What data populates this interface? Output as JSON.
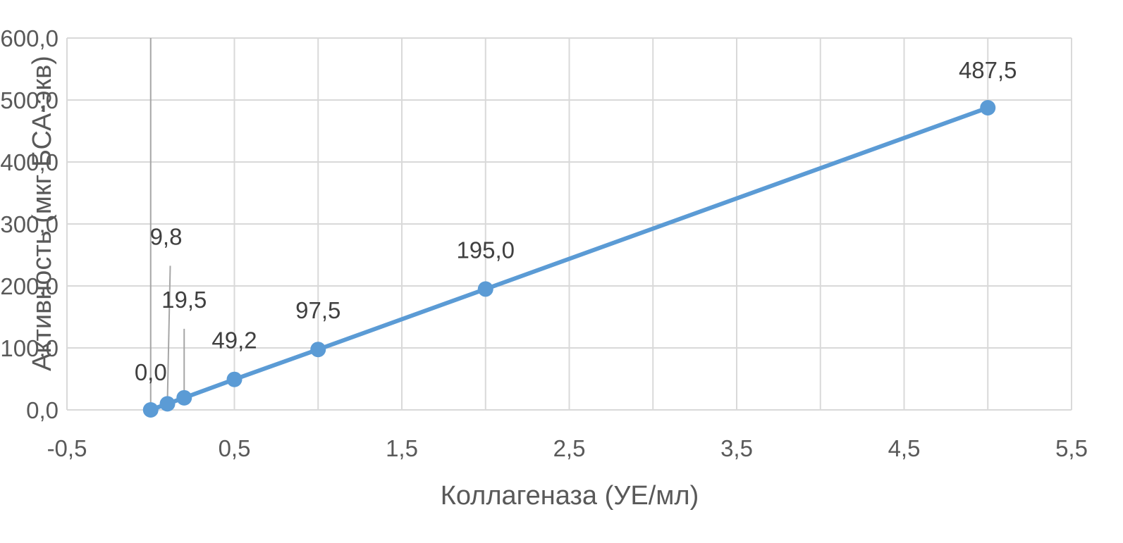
{
  "chart_data": {
    "type": "scatter",
    "title": "",
    "xlabel": "Коллагеназа (УЕ/мл)",
    "ylabel": "Активность (мкг БСА-экв)",
    "xlim": [
      -0.5,
      5.5
    ],
    "ylim": [
      0,
      600
    ],
    "x_ticks": [
      -0.5,
      0.5,
      1.5,
      2.5,
      3.5,
      4.5,
      5.5
    ],
    "x_tick_labels": [
      "-0,5",
      "0,5",
      "1,5",
      "2,5",
      "3,5",
      "4,5",
      "5,5"
    ],
    "y_ticks": [
      0,
      100,
      200,
      300,
      400,
      500,
      600
    ],
    "y_tick_labels": [
      "0,0",
      "100,0",
      "200,0",
      "300,0",
      "400,0",
      "500,0",
      "600,0"
    ],
    "x_minor_gridlines": [
      0,
      1,
      2,
      3,
      4,
      5
    ],
    "grid": true,
    "legend": "none",
    "connected": true,
    "series": [
      {
        "color": "#5b9bd5",
        "x": [
          0,
          0.1,
          0.2,
          0.5,
          1,
          2,
          5
        ],
        "y": [
          0,
          9.8,
          19.5,
          49.2,
          97.5,
          195.0,
          487.5
        ],
        "labels": [
          "0,0",
          "9,8",
          "19,5",
          "49,2",
          "97,5",
          "195,0",
          "487,5"
        ]
      }
    ]
  }
}
